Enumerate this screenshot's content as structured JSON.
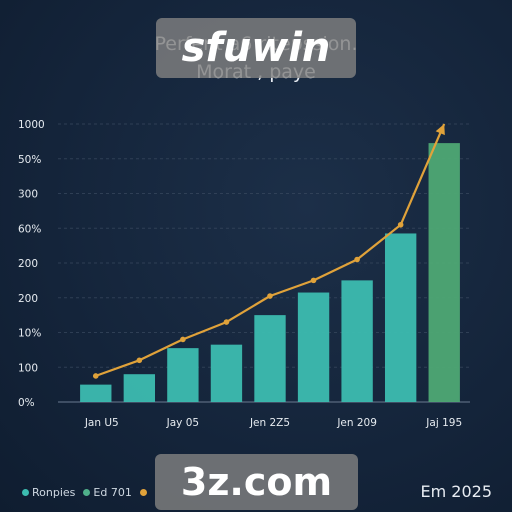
{
  "title_lines": [
    "Perfent a6 ritepssion.",
    "Morat , payе"
  ],
  "watermarks": {
    "top": "sfuwin",
    "bottom": "3z.com"
  },
  "legend": [
    {
      "label": "Ronpies",
      "color": "#3cbcb0"
    },
    {
      "label": "Ed 701",
      "color": "#4fb08a"
    },
    {
      "label": "",
      "color": "#e0a23a"
    }
  ],
  "right_note": "Em 2025",
  "colors": {
    "bar": "#3cbcb0",
    "bar_last": "#4ea874",
    "line": "#e0a23a",
    "grid": "#3a4a60",
    "text": "#e6ebf0"
  },
  "chart_data": {
    "type": "bar",
    "y_tick_labels": [
      "0%",
      "100",
      "10%",
      "200",
      "200",
      "60%",
      "300",
      "50%",
      "1000"
    ],
    "ylim": [
      0,
      8
    ],
    "x_tick_labels": [
      "Jan U5",
      "Jay 05",
      "Jen 2Z5",
      "Jen 209",
      "Jaj 195"
    ],
    "bar_values": [
      0.5,
      0.8,
      1.55,
      1.65,
      2.5,
      3.15,
      3.5,
      4.85,
      7.45
    ],
    "line_values": [
      0.75,
      1.2,
      1.8,
      2.3,
      3.05,
      3.5,
      4.1,
      5.1,
      8.0
    ],
    "grid": true
  }
}
